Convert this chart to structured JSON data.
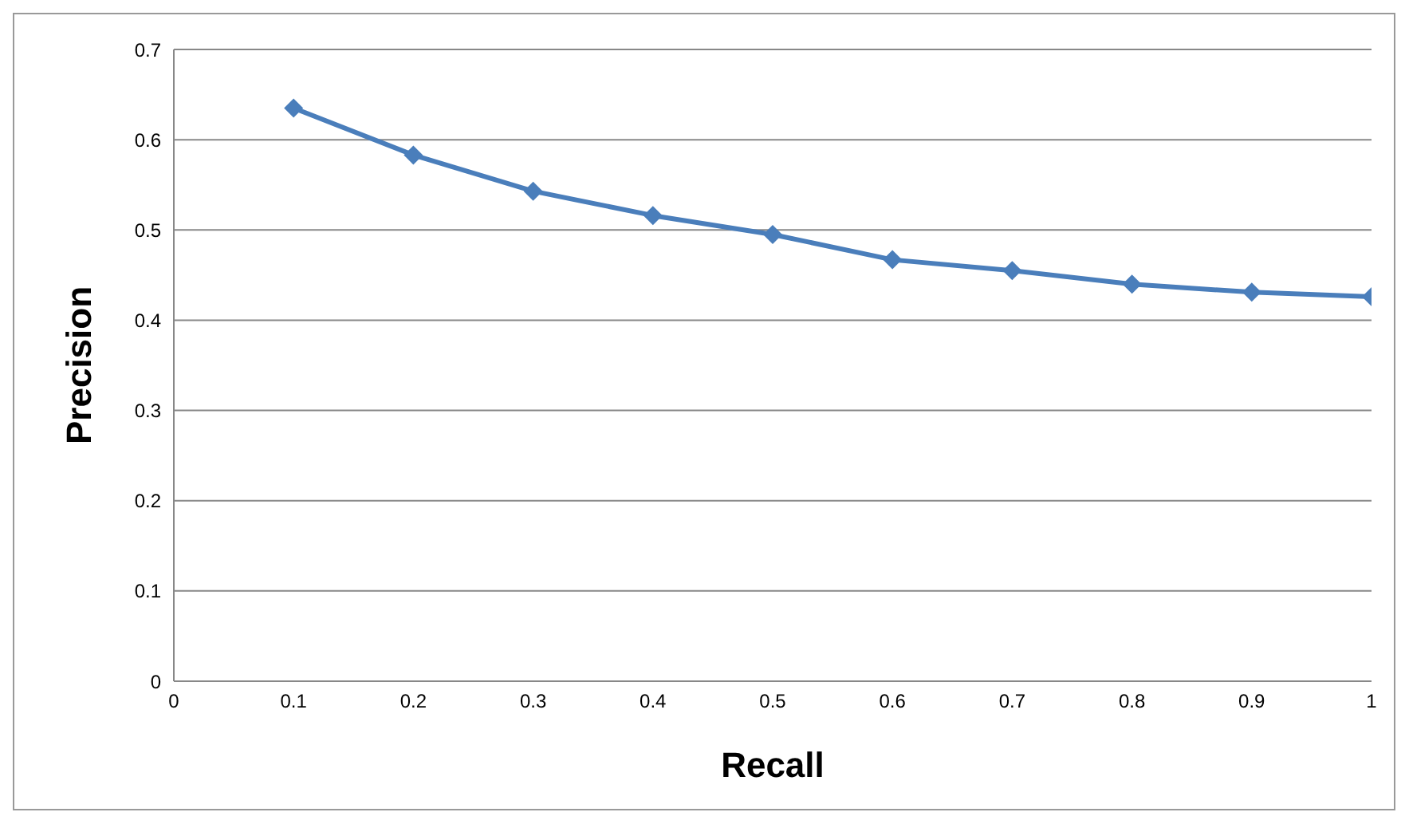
{
  "chart_data": {
    "type": "line",
    "xlabel": "Recall",
    "ylabel": "Precision",
    "x": [
      0.1,
      0.2,
      0.3,
      0.4,
      0.5,
      0.6,
      0.7,
      0.8,
      0.9,
      1
    ],
    "series": [
      {
        "color": "#4a7ebb",
        "values": [
          0.635,
          0.583,
          0.543,
          0.516,
          0.495,
          0.467,
          0.455,
          0.44,
          0.431,
          0.426
        ]
      }
    ],
    "xlim": [
      0,
      1
    ],
    "xticks": [
      0,
      0.1,
      0.2,
      0.3,
      0.4,
      0.5,
      0.6,
      0.7,
      0.8,
      0.9,
      1
    ],
    "ylim": [
      0,
      0.7
    ],
    "yticks": [
      0,
      0.1,
      0.2,
      0.3,
      0.4,
      0.5,
      0.6,
      0.7
    ],
    "grid": "y",
    "marker": "diamond",
    "line_style": "solid",
    "legend": false
  }
}
